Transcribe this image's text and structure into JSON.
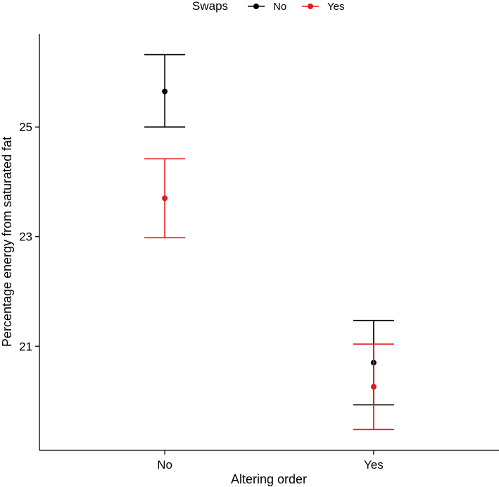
{
  "chart_data": {
    "type": "scatter",
    "title": "",
    "xlabel": "Altering order",
    "ylabel": "Percentage energy from saturated fat",
    "categories": [
      "No",
      "Yes"
    ],
    "ylim": [
      19.1,
      26.7
    ],
    "yticks": [
      21,
      23,
      25
    ],
    "grid": false,
    "legend": {
      "title": "Swaps",
      "placement": "top",
      "entries": [
        "No",
        "Yes"
      ]
    },
    "series": [
      {
        "name": "No",
        "color": "#000000",
        "values": [
          25.65,
          20.7
        ],
        "lower": [
          25.0,
          19.93
        ],
        "upper": [
          26.32,
          21.47
        ]
      },
      {
        "name": "Yes",
        "color": "#e41a1c",
        "values": [
          23.7,
          20.26
        ],
        "lower": [
          22.98,
          19.48
        ],
        "upper": [
          24.42,
          21.04
        ]
      }
    ]
  }
}
